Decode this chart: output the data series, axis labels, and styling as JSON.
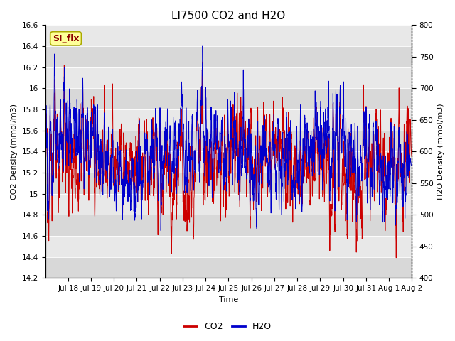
{
  "title": "LI7500 CO2 and H2O",
  "xlabel": "Time",
  "ylabel_left": "CO2 Density (mmol/m3)",
  "ylabel_right": "H2O Density (mmol/m3)",
  "co2_ylim": [
    14.2,
    16.6
  ],
  "h2o_ylim": [
    400,
    800
  ],
  "co2_color": "#cc0000",
  "h2o_color": "#0000cc",
  "background_color": "#ffffff",
  "plot_bg_light": "#e8e8e8",
  "plot_bg_dark": "#d0d0d0",
  "annotation_text": "SI_flx",
  "annotation_bg": "#ffff99",
  "annotation_border": "#aaaa00",
  "annotation_text_color": "#8b0000",
  "x_tick_labels": [
    "Jul 18",
    "Jul 19",
    "Jul 20",
    "Jul 21",
    "Jul 22",
    "Jul 23",
    "Jul 24",
    "Jul 25",
    "Jul 26",
    "Jul 27",
    "Jul 28",
    "Jul 29",
    "Jul 30",
    "Jul 31",
    "Aug 1",
    "Aug 2"
  ],
  "co2_yticks": [
    14.2,
    14.4,
    14.6,
    14.8,
    15.0,
    15.2,
    15.4,
    15.6,
    15.8,
    16.0,
    16.2,
    16.4,
    16.6
  ],
  "h2o_yticks": [
    400,
    450,
    500,
    550,
    600,
    650,
    700,
    750,
    800
  ],
  "seed": 12345,
  "n_points": 3000,
  "title_fontsize": 11,
  "label_fontsize": 8,
  "tick_fontsize": 7.5,
  "legend_fontsize": 9
}
